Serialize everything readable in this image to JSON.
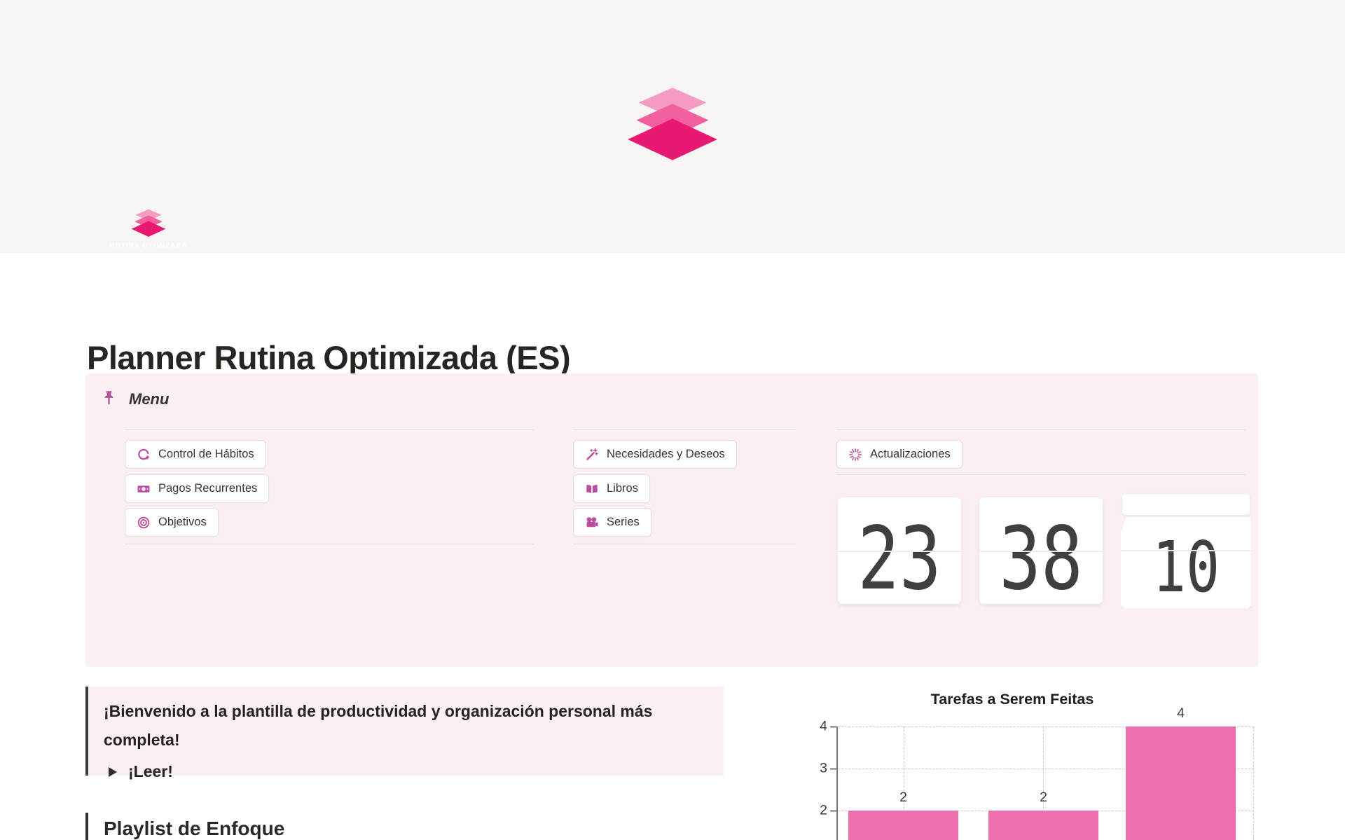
{
  "page": {
    "title": "Planner Rutina Optimizada (ES)",
    "background": "#ffffff",
    "cover_background": "#f7f6f3"
  },
  "logo": {
    "caption": "ROTINA OTIMIZADA",
    "layer_colors": [
      "#f69cc4",
      "#f25f9f",
      "#e91871"
    ]
  },
  "menu": {
    "label": "Menu",
    "pin_icon": "pushpin-icon",
    "icon_color": "#bb4f9d",
    "panel_background": "#fbeff4",
    "columns": [
      {
        "items": [
          {
            "icon": "habit-loop-icon",
            "label": "Control de Hábitos"
          },
          {
            "icon": "banknote-icon",
            "label": "Pagos Recurrentes"
          },
          {
            "icon": "target-icon",
            "label": "Objetivos"
          }
        ]
      },
      {
        "items": [
          {
            "icon": "magic-wand-icon",
            "label": "Necesidades y Deseos"
          },
          {
            "icon": "open-book-icon",
            "label": "Libros"
          },
          {
            "icon": "movie-camera-icon",
            "label": "Series"
          }
        ]
      },
      {
        "items": [
          {
            "icon": "burst-icon",
            "label": "Actualizaciones"
          }
        ]
      }
    ]
  },
  "clock": {
    "values": [
      "23",
      "38",
      "10"
    ]
  },
  "callout": {
    "text": "¡Bienvenido a la plantilla de productividad y organización personal más completa!",
    "toggle_label": "¡Leer!"
  },
  "playlist": {
    "heading": "Playlist de Enfoque"
  },
  "chart_data": {
    "type": "bar",
    "title": "Tarefas a Serem Feitas",
    "categories": [
      "",
      "",
      ""
    ],
    "values": [
      2,
      2,
      4
    ],
    "yticks": [
      4,
      3,
      2
    ],
    "ylim": [
      0,
      4
    ],
    "bar_color": "#ee6fae",
    "grid": "dashed",
    "legend": "none"
  }
}
